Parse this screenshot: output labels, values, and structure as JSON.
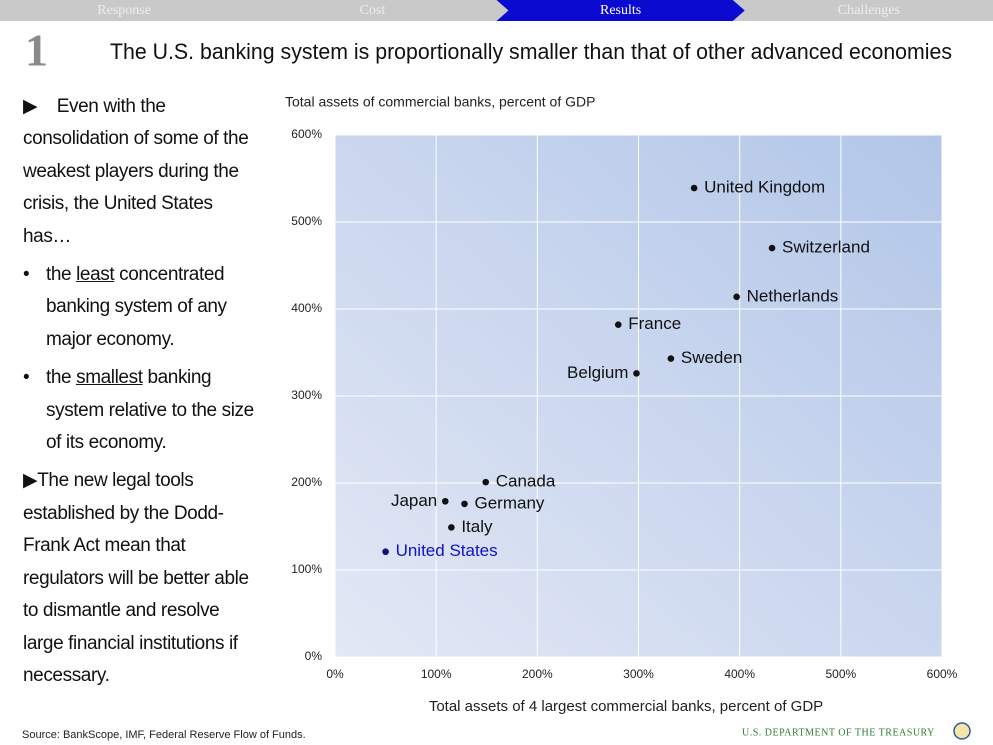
{
  "nav": {
    "tabs": [
      "Response",
      "Cost",
      "Results",
      "Challenges"
    ],
    "active": 2
  },
  "slide": {
    "number": "1",
    "title": "The U.S. banking system is proportionally smaller than that of other advanced economies"
  },
  "body": {
    "intro": "Even with the consolidation of some of the weakest players during the crisis, the United States has…",
    "bullets": [
      [
        "the ",
        "least",
        " concentrated banking system of any major economy."
      ],
      [
        "the ",
        "smallest",
        " banking system relative to the size of its economy."
      ]
    ],
    "closing": "The new legal tools established by the Dodd-Frank Act mean that regulators will be better able to dismantle and resolve large financial institutions if necessary."
  },
  "chart_data": {
    "type": "scatter",
    "y_label": "Total assets of commercial banks, percent of GDP",
    "x_label": "Total assets of 4 largest commercial banks, percent of GDP",
    "labels": [
      "United Kingdom",
      "Switzerland",
      "Netherlands",
      "France",
      "Sweden",
      "Belgium",
      "Canada",
      "Japan",
      "Germany",
      "Italy",
      "United States"
    ],
    "x": [
      355,
      432,
      397,
      280,
      332,
      298,
      149,
      109,
      128,
      115,
      50
    ],
    "values": [
      539,
      470,
      414,
      382,
      343,
      326,
      201,
      179,
      176,
      149,
      121
    ],
    "label_colors": [
      "#111111",
      "#111111",
      "#111111",
      "#111111",
      "#111111",
      "#111111",
      "#111111",
      "#111111",
      "#111111",
      "#111111",
      "#1010c8"
    ],
    "point_colors": [
      "#111111",
      "#111111",
      "#111111",
      "#111111",
      "#111111",
      "#111111",
      "#111111",
      "#111111",
      "#111111",
      "#111111",
      "#10107a"
    ],
    "xlim": [
      0,
      600
    ],
    "ylim": [
      0,
      600
    ],
    "xticks": [
      {
        "value": 0,
        "label": "0%"
      },
      {
        "value": 100,
        "label": "100%"
      },
      {
        "value": 200,
        "label": "200%"
      },
      {
        "value": 300,
        "label": "300%"
      },
      {
        "value": 400,
        "label": "400%"
      },
      {
        "value": 500,
        "label": "500%"
      },
      {
        "value": 600,
        "label": "600%"
      }
    ],
    "yticks": [
      {
        "value": 0,
        "label": "0%"
      },
      {
        "value": 100,
        "label": "100%"
      },
      {
        "value": 200,
        "label": "200%"
      },
      {
        "value": 300,
        "label": "300%"
      },
      {
        "value": 400,
        "label": "400%"
      },
      {
        "value": 500,
        "label": "500%"
      },
      {
        "value": 600,
        "label": "600%"
      }
    ],
    "grid": true
  },
  "footer": {
    "source": "Source: BankScope, IMF, Federal Reserve Flow of Funds.",
    "agency": "U.S. DEPARTMENT OF THE TREASURY"
  }
}
